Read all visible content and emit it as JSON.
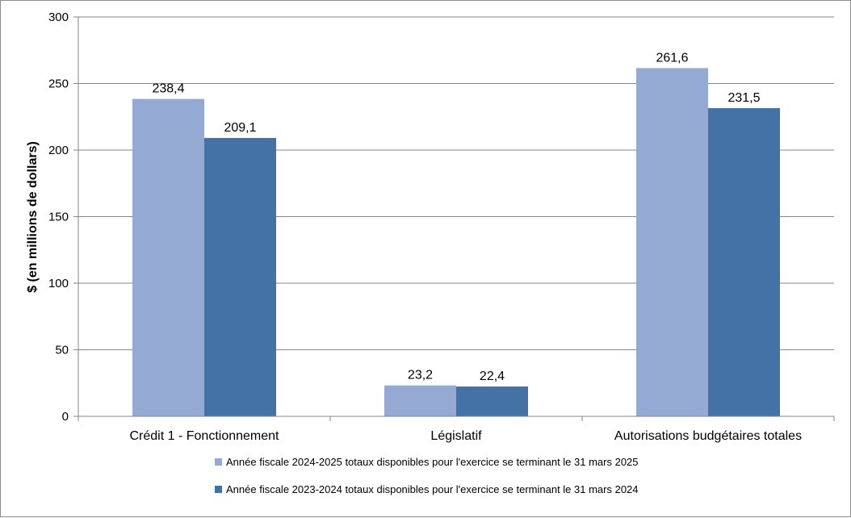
{
  "chart_data": {
    "type": "bar",
    "categories": [
      "Crédit 1 - Fonctionnement",
      "Législatif",
      "Autorisations budgétaires totales"
    ],
    "series": [
      {
        "name": "Année fiscale 2024-2025 totaux disponibles pour l'exercice se terminant le 31 mars 2025",
        "values": [
          238.4,
          23.2,
          261.6
        ],
        "labels": [
          "238,4",
          "23,2",
          "261,6"
        ],
        "color": "#95aad3"
      },
      {
        "name": "Année fiscale 2023-2024 totaux disponibles pour l'exercice se terminant le 31 mars 2024",
        "values": [
          209.1,
          22.4,
          231.5
        ],
        "labels": [
          "209,1",
          "22,4",
          "231,5"
        ],
        "color": "#4472a6"
      }
    ],
    "xlabel": "",
    "ylabel": "$ (en millions de dollars)",
    "ylim": [
      0,
      300
    ],
    "yticks": [
      "0",
      "50",
      "100",
      "150",
      "200",
      "250",
      "300"
    ],
    "grid": true,
    "legend_position": "bottom"
  }
}
